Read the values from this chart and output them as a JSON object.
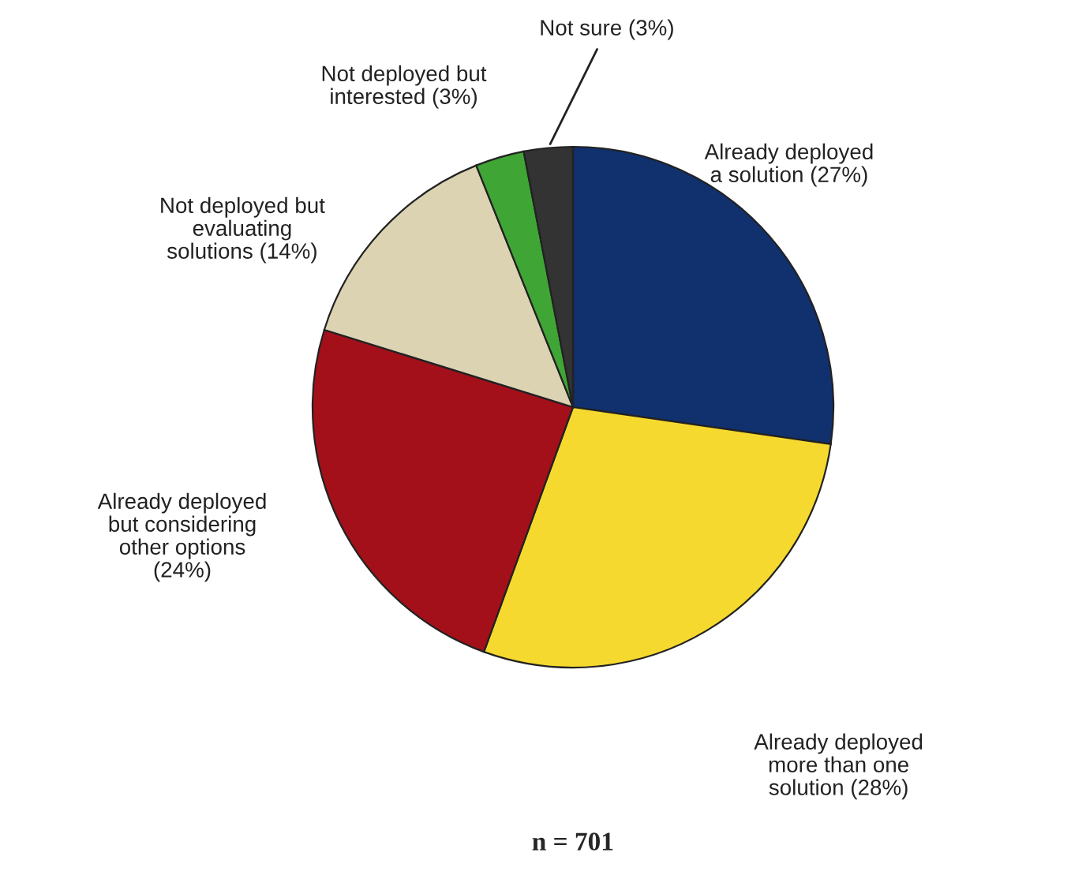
{
  "chart_data": {
    "type": "pie",
    "categories": [
      "Already deployed\na solution (27%)",
      "Already deployed\nmore than one\nsolution (28%)",
      "Already deployed\nbut considering\nother options\n(24%)",
      "Not deployed but\nevaluating\nsolutions (14%)",
      "Not deployed but\ninterested (3%)",
      "Not sure (3%)"
    ],
    "values": [
      27,
      28,
      24,
      14,
      3,
      3
    ],
    "colors": [
      "#10306e",
      "#f6d92e",
      "#a3101a",
      "#dbd3b2",
      "#3fa535",
      "#333333"
    ],
    "annotations": [
      "n = 701"
    ]
  }
}
